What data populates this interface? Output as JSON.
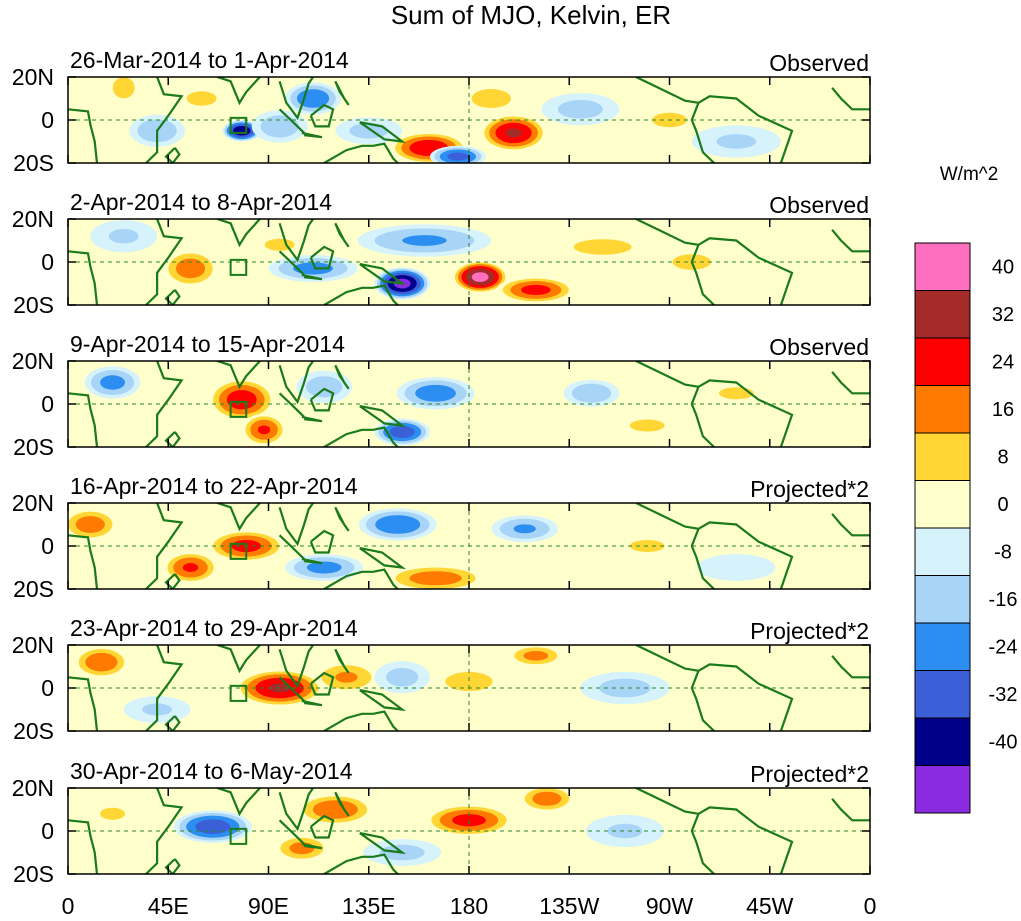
{
  "chart_data": {
    "type": "heatmap",
    "title": "Sum of MJO, Kelvin, ER",
    "units": "W/m^2",
    "x_ticks": [
      "0",
      "45E",
      "90E",
      "135E",
      "180",
      "135W",
      "90W",
      "45W",
      "0"
    ],
    "y_ticks": [
      "20N",
      "0",
      "20S"
    ],
    "lon_range": [
      0,
      360
    ],
    "lat_range": [
      -20,
      20
    ],
    "colorbar": {
      "levels": [
        "40",
        "32",
        "24",
        "16",
        "8",
        "0",
        "-8",
        "-16",
        "-24",
        "-32",
        "-40"
      ],
      "colors": [
        "#ff6fc0",
        "#a52a2a",
        "#ff0000",
        "#ff7a00",
        "#ffd633",
        "#ffffcc",
        "#d6f2fb",
        "#a8d4f7",
        "#2b8ef0",
        "#3b5fd6",
        "#00008b",
        "#8a2be2"
      ]
    },
    "panels": [
      {
        "period": "26-Mar-2014 to 1-Apr-2014",
        "status": "Observed",
        "anomalies": [
          {
            "lon": 25,
            "lat": 15,
            "value": 14,
            "rx": 6,
            "ry": 6
          },
          {
            "lon": 78,
            "lat": -5,
            "value": -40,
            "rx": 7,
            "ry": 4
          },
          {
            "lon": 95,
            "lat": -3,
            "value": -15,
            "rx": 10,
            "ry": 6
          },
          {
            "lon": 60,
            "lat": 10,
            "value": 10,
            "rx": 12,
            "ry": 6
          },
          {
            "lon": 110,
            "lat": 10,
            "value": -24,
            "rx": 10,
            "ry": 6
          },
          {
            "lon": 135,
            "lat": -5,
            "value": -12,
            "rx": 12,
            "ry": 5
          },
          {
            "lon": 162,
            "lat": -13,
            "value": 32,
            "rx": 14,
            "ry": 6
          },
          {
            "lon": 200,
            "lat": -6,
            "value": 34,
            "rx": 12,
            "ry": 7
          },
          {
            "lon": 175,
            "lat": -17,
            "value": -28,
            "rx": 10,
            "ry": 4
          },
          {
            "lon": 190,
            "lat": 10,
            "value": 16,
            "rx": 10,
            "ry": 5
          },
          {
            "lon": 230,
            "lat": 5,
            "value": -12,
            "rx": 14,
            "ry": 6
          },
          {
            "lon": 270,
            "lat": 0,
            "value": 10,
            "rx": 14,
            "ry": 6
          },
          {
            "lon": 300,
            "lat": -10,
            "value": -10,
            "rx": 16,
            "ry": 6
          },
          {
            "lon": 40,
            "lat": -5,
            "value": -16,
            "rx": 10,
            "ry": 6
          }
        ]
      },
      {
        "period": "2-Apr-2014 to 8-Apr-2014",
        "status": "Observed",
        "anomalies": [
          {
            "lon": 150,
            "lat": -10,
            "value": -44,
            "rx": 10,
            "ry": 6
          },
          {
            "lon": 185,
            "lat": -7,
            "value": 44,
            "rx": 10,
            "ry": 6
          },
          {
            "lon": 210,
            "lat": -13,
            "value": 28,
            "rx": 14,
            "ry": 5
          },
          {
            "lon": 55,
            "lat": -3,
            "value": 22,
            "rx": 10,
            "ry": 7
          },
          {
            "lon": 110,
            "lat": -3,
            "value": -20,
            "rx": 16,
            "ry": 5
          },
          {
            "lon": 160,
            "lat": 10,
            "value": -18,
            "rx": 24,
            "ry": 6
          },
          {
            "lon": 240,
            "lat": 7,
            "value": 12,
            "rx": 18,
            "ry": 5
          },
          {
            "lon": 280,
            "lat": 0,
            "value": 12,
            "rx": 12,
            "ry": 5
          },
          {
            "lon": 25,
            "lat": 12,
            "value": -10,
            "rx": 12,
            "ry": 6
          },
          {
            "lon": 95,
            "lat": 8,
            "value": 10,
            "rx": 12,
            "ry": 5
          }
        ]
      },
      {
        "period": "9-Apr-2014 to 15-Apr-2014",
        "status": "Observed",
        "anomalies": [
          {
            "lon": 20,
            "lat": 10,
            "value": -20,
            "rx": 10,
            "ry": 6
          },
          {
            "lon": 78,
            "lat": 2,
            "value": 30,
            "rx": 12,
            "ry": 8
          },
          {
            "lon": 88,
            "lat": -12,
            "value": 26,
            "rx": 8,
            "ry": 6
          },
          {
            "lon": 150,
            "lat": -13,
            "value": -30,
            "rx": 10,
            "ry": 5
          },
          {
            "lon": 165,
            "lat": 5,
            "value": -22,
            "rx": 14,
            "ry": 6
          },
          {
            "lon": 115,
            "lat": 8,
            "value": -14,
            "rx": 10,
            "ry": 6
          },
          {
            "lon": 235,
            "lat": 5,
            "value": -16,
            "rx": 10,
            "ry": 5
          },
          {
            "lon": 260,
            "lat": -10,
            "value": 10,
            "rx": 14,
            "ry": 5
          },
          {
            "lon": 300,
            "lat": 5,
            "value": 10,
            "rx": 14,
            "ry": 5
          }
        ]
      },
      {
        "period": "16-Apr-2014 to 22-Apr-2014",
        "status": "Projected*2",
        "anomalies": [
          {
            "lon": 10,
            "lat": 10,
            "value": 22,
            "rx": 10,
            "ry": 6
          },
          {
            "lon": 55,
            "lat": -10,
            "value": 26,
            "rx": 10,
            "ry": 6
          },
          {
            "lon": 80,
            "lat": 0,
            "value": 28,
            "rx": 14,
            "ry": 6
          },
          {
            "lon": 115,
            "lat": -10,
            "value": -20,
            "rx": 14,
            "ry": 5
          },
          {
            "lon": 148,
            "lat": 10,
            "value": -24,
            "rx": 14,
            "ry": 6
          },
          {
            "lon": 165,
            "lat": -15,
            "value": 22,
            "rx": 18,
            "ry": 5
          },
          {
            "lon": 205,
            "lat": 8,
            "value": -18,
            "rx": 12,
            "ry": 5
          },
          {
            "lon": 260,
            "lat": 0,
            "value": 10,
            "rx": 14,
            "ry": 5
          },
          {
            "lon": 300,
            "lat": -10,
            "value": -8,
            "rx": 14,
            "ry": 5
          }
        ]
      },
      {
        "period": "23-Apr-2014 to 29-Apr-2014",
        "status": "Projected*2",
        "anomalies": [
          {
            "lon": 15,
            "lat": 12,
            "value": 24,
            "rx": 10,
            "ry": 6
          },
          {
            "lon": 95,
            "lat": 0,
            "value": 34,
            "rx": 16,
            "ry": 7
          },
          {
            "lon": 125,
            "lat": 5,
            "value": 18,
            "rx": 12,
            "ry": 6
          },
          {
            "lon": 150,
            "lat": 5,
            "value": -12,
            "rx": 10,
            "ry": 6
          },
          {
            "lon": 180,
            "lat": 3,
            "value": 16,
            "rx": 12,
            "ry": 5
          },
          {
            "lon": 210,
            "lat": 15,
            "value": 20,
            "rx": 10,
            "ry": 4
          },
          {
            "lon": 250,
            "lat": 0,
            "value": -12,
            "rx": 16,
            "ry": 6
          },
          {
            "lon": 40,
            "lat": -10,
            "value": -10,
            "rx": 12,
            "ry": 5
          }
        ]
      },
      {
        "period": "30-Apr-2014 to 6-May-2014",
        "status": "Projected*2",
        "anomalies": [
          {
            "lon": 65,
            "lat": 2,
            "value": -30,
            "rx": 14,
            "ry": 6
          },
          {
            "lon": 120,
            "lat": 10,
            "value": 24,
            "rx": 14,
            "ry": 6
          },
          {
            "lon": 105,
            "lat": -8,
            "value": 20,
            "rx": 10,
            "ry": 5
          },
          {
            "lon": 180,
            "lat": 5,
            "value": 28,
            "rx": 16,
            "ry": 6
          },
          {
            "lon": 215,
            "lat": 15,
            "value": 22,
            "rx": 10,
            "ry": 5
          },
          {
            "lon": 150,
            "lat": -10,
            "value": -12,
            "rx": 14,
            "ry": 5
          },
          {
            "lon": 250,
            "lat": 0,
            "value": -10,
            "rx": 14,
            "ry": 6
          },
          {
            "lon": 20,
            "lat": 8,
            "value": 10,
            "rx": 10,
            "ry": 5
          }
        ]
      }
    ]
  }
}
